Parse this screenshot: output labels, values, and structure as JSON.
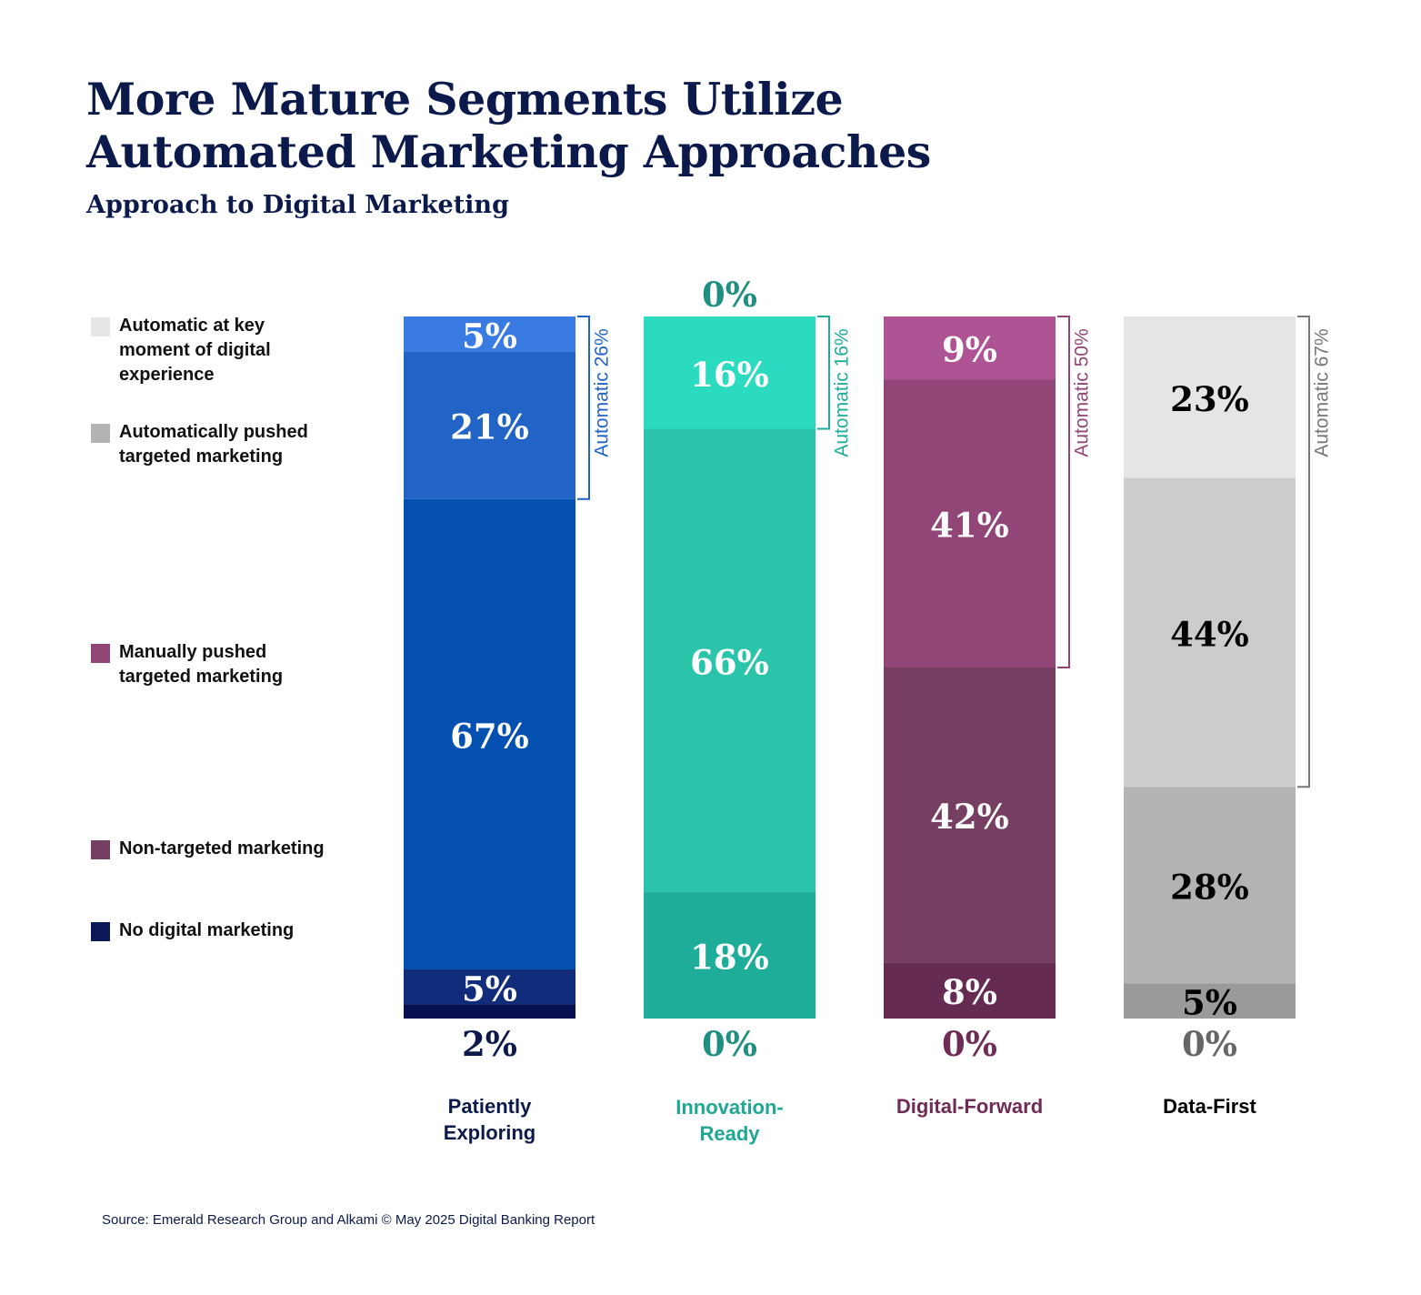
{
  "title_lines": [
    "More Mature Segments Utilize",
    "Automated Marketing Approaches"
  ],
  "subtitle": "Approach to Digital Marketing",
  "legend": [
    {
      "label": "Automatic at key moment of digital experience",
      "color": "#e6e6e6"
    },
    {
      "label": "Automatically pushed targeted marketing",
      "color": "#b3b3b3"
    },
    {
      "label": "Manually pushed targeted marketing",
      "color": "#924577"
    },
    {
      "label": "Non-targeted marketing",
      "color": "#763e60"
    },
    {
      "label": "No digital marketing",
      "color": "#0b1859"
    }
  ],
  "chart_data": {
    "type": "bar",
    "stacked": true,
    "normalized_to_100": true,
    "title": "More Mature Segments Utilize Automated Marketing Approaches",
    "subtitle": "Approach to Digital Marketing",
    "categories": [
      "Patiently Exploring",
      "Innovation-Ready",
      "Digital-Forward",
      "Data-First"
    ],
    "category_label_lines": [
      [
        "Patiently",
        "Exploring"
      ],
      [
        "Innovation-",
        "Ready"
      ],
      [
        "Digital-Forward"
      ],
      [
        "Data-First"
      ]
    ],
    "category_colors": [
      "#0b1a4b",
      "#1ea894",
      "#6d2b55",
      "#000000"
    ],
    "series": [
      {
        "name": "Automatic at key moment of digital experience",
        "values": [
          5,
          0,
          9,
          23
        ]
      },
      {
        "name": "Automatically pushed targeted marketing",
        "values": [
          21,
          16,
          41,
          44
        ]
      },
      {
        "name": "Manually pushed targeted marketing",
        "values": [
          67,
          66,
          42,
          28
        ]
      },
      {
        "name": "Non-targeted marketing",
        "values": [
          5,
          18,
          8,
          5
        ]
      },
      {
        "name": "No digital marketing",
        "values": [
          2,
          0,
          0,
          0
        ]
      }
    ],
    "segment_colors": [
      [
        "#397be2",
        "#2264c6",
        "#0450b1",
        "#122c7c",
        "#06104f"
      ],
      [
        "#2bdbbf",
        "#2bdbbf",
        "#29c4aa",
        "#1ead98",
        "#1ead98"
      ],
      [
        "#ae5394",
        "#924577",
        "#763e60",
        "#662b53",
        "#662b53"
      ],
      [
        "#e5e5e5",
        "#cccccc",
        "#b3b3b3",
        "#9a9a9a",
        "#9a9a9a"
      ]
    ],
    "segment_label_colors": [
      "#ffffff",
      "#ffffff",
      "#ffffff",
      "#000000"
    ],
    "top_zero_labels": [
      null,
      "0%",
      null,
      null
    ],
    "bottom_labels": [
      "2%",
      "0%",
      "0%",
      "0%"
    ],
    "outside_label_colors": [
      "#0b1a4b",
      "#1e8f80",
      "#6d2b55",
      "#666666"
    ],
    "brackets": [
      {
        "label": "Automatic 26%",
        "series_span": [
          0,
          1
        ],
        "color": "#2264c6"
      },
      {
        "label": "Automatic 16%",
        "series_span": [
          0,
          1
        ],
        "color": "#1ead98"
      },
      {
        "label": "Automatic 50%",
        "series_span": [
          0,
          1
        ],
        "color": "#924577"
      },
      {
        "label": "Automatic 67%",
        "series_span": [
          0,
          1
        ],
        "color": "#777777"
      }
    ]
  },
  "source": "Source: Emerald Research Group and Alkami © May 2025 Digital Banking Report"
}
